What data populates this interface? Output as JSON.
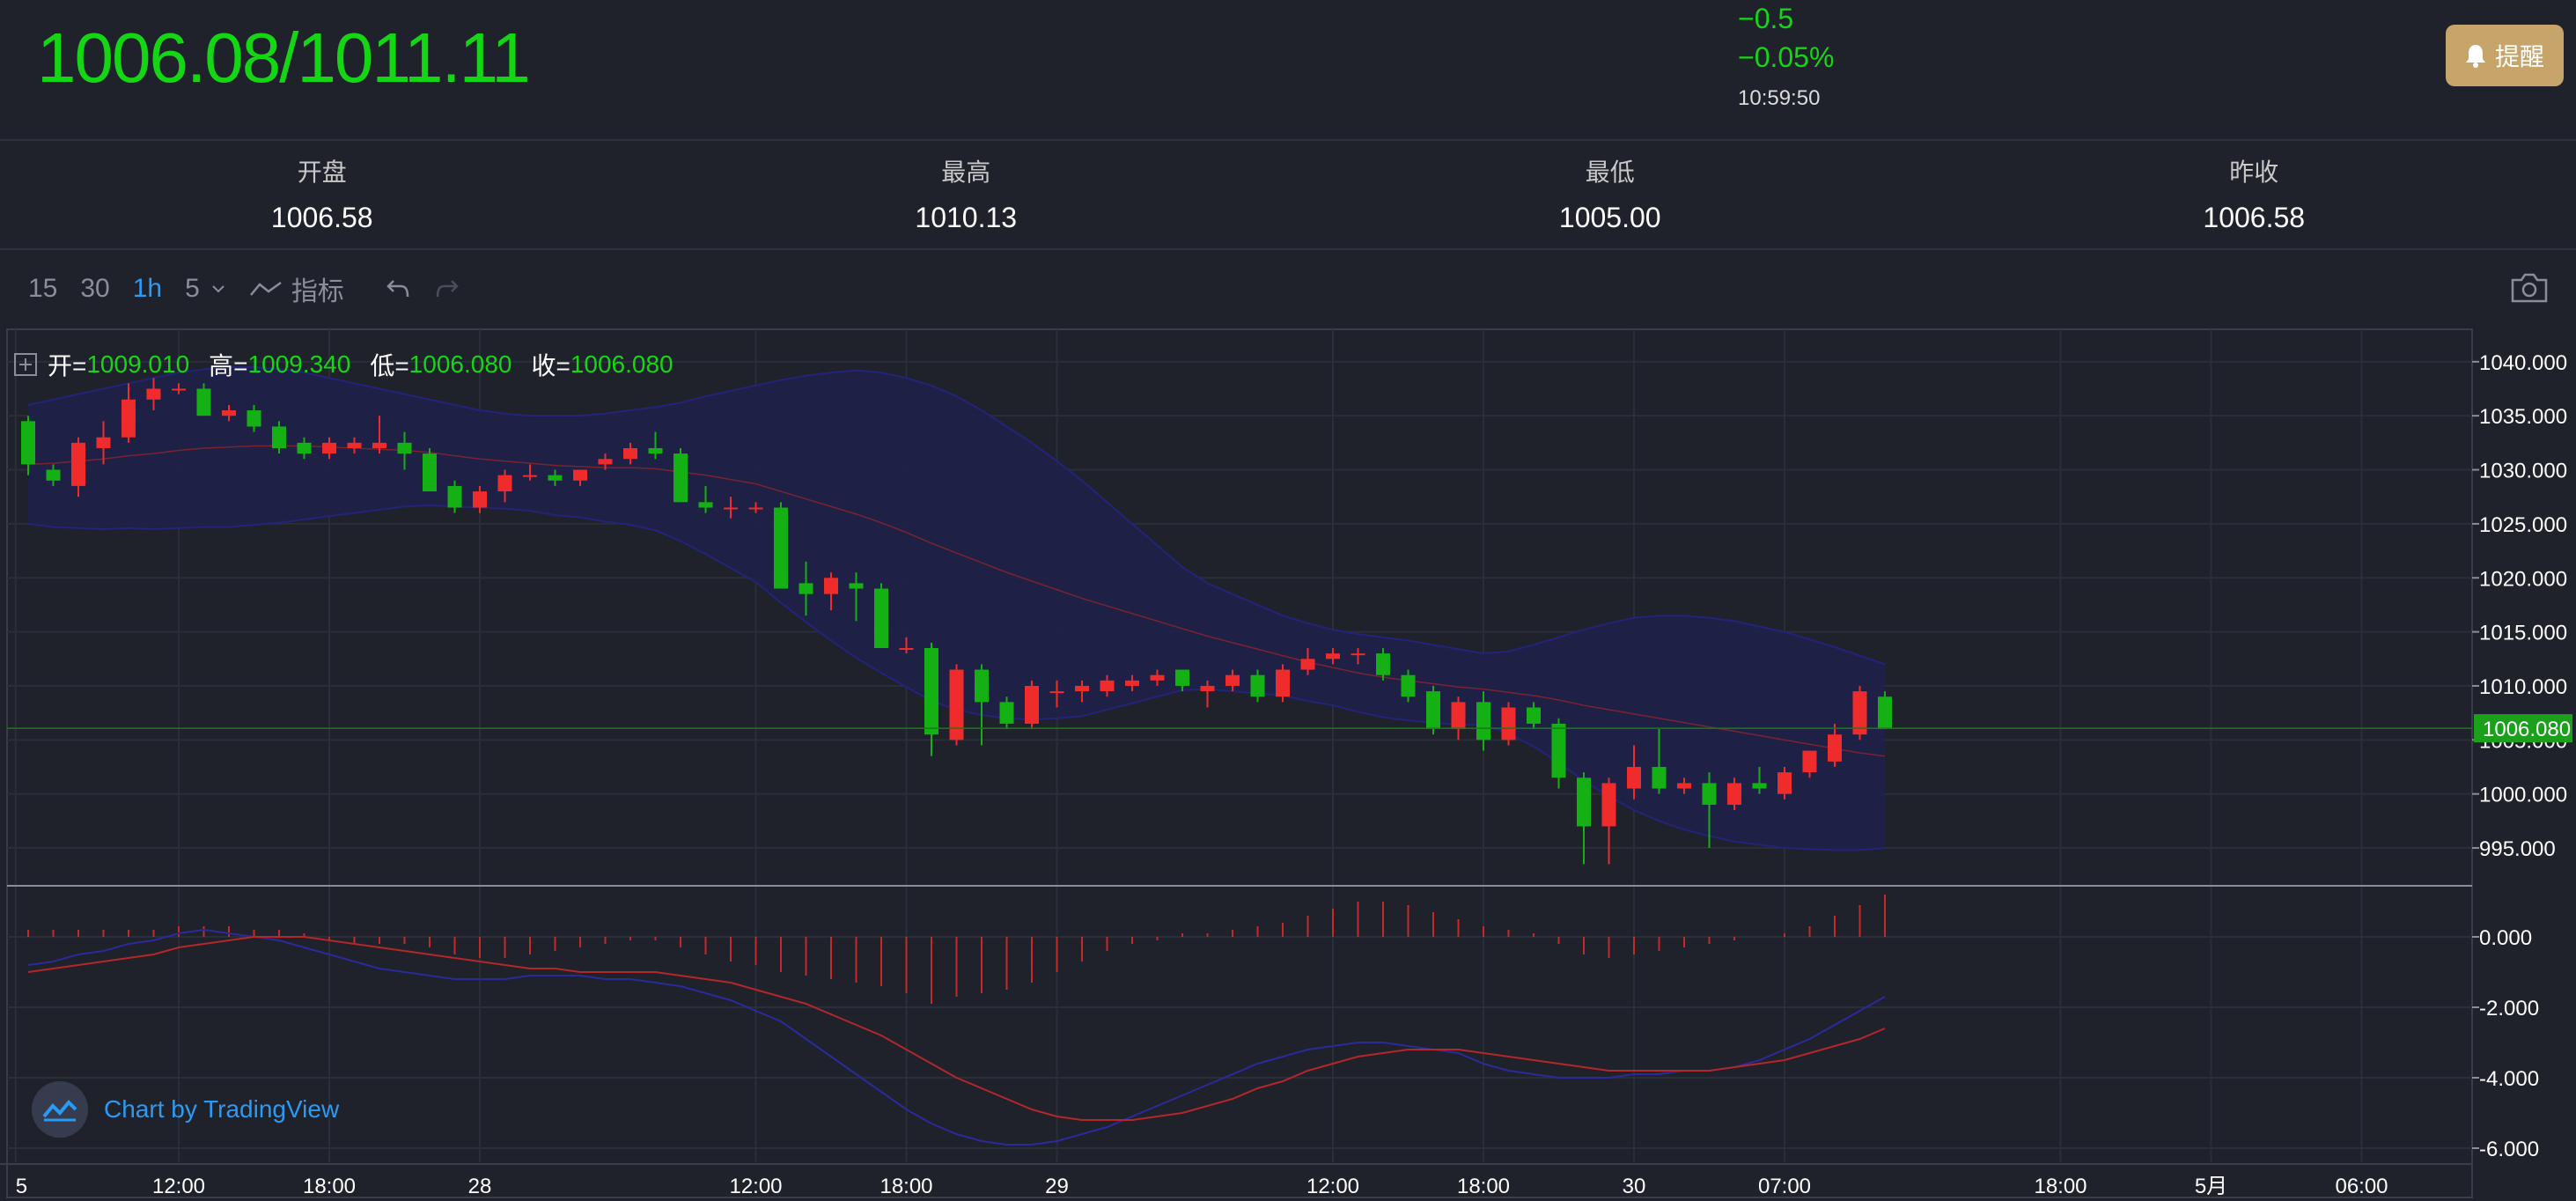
{
  "header": {
    "price": "1006.08/1011.11",
    "change_abs": "−0.5",
    "change_pct": "−0.05%",
    "time": "10:59:50",
    "alert_label": "提醒"
  },
  "stats": [
    {
      "label": "开盘",
      "value": "1006.58"
    },
    {
      "label": "最高",
      "value": "1010.13"
    },
    {
      "label": "最低",
      "value": "1005.00"
    },
    {
      "label": "昨收",
      "value": "1006.58"
    }
  ],
  "toolbar": {
    "intervals": [
      "15",
      "30",
      "1h",
      "5"
    ],
    "active_interval": "1h",
    "indicators_label": "指标"
  },
  "legend": {
    "open_label": "开=",
    "open": "1009.010",
    "high_label": "高=",
    "high": "1009.340",
    "low_label": "低=",
    "low": "1006.080",
    "close_label": "收=",
    "close": "1006.080"
  },
  "branding": "Chart by TradingView",
  "colors": {
    "up": "#ef2b2b",
    "down": "#14b014",
    "accent": "#2b9af3",
    "alert": "#c6a46a"
  },
  "chart_data": {
    "type": "candlestick",
    "price_axis": {
      "ticks": [
        "1040.000",
        "1035.000",
        "1030.000",
        "1025.000",
        "1020.000",
        "1015.000",
        "1010.000",
        "1005.000",
        "1000.000",
        "995.000"
      ],
      "last_price_label": "1006.080",
      "range": [
        991.5,
        1043
      ]
    },
    "macd_axis": {
      "ticks": [
        "0.000",
        "-2.000",
        "-4.000",
        "-6.000"
      ],
      "range": [
        -6.4,
        1.4
      ]
    },
    "time_axis": {
      "labels": [
        {
          "i": -0.5,
          "text": "5"
        },
        {
          "i": 6,
          "text": "12:00"
        },
        {
          "i": 12,
          "text": "18:00"
        },
        {
          "i": 18,
          "text": "28"
        },
        {
          "i": 29,
          "text": "12:00"
        },
        {
          "i": 35,
          "text": "18:00"
        },
        {
          "i": 41,
          "text": "29"
        },
        {
          "i": 52,
          "text": "12:00"
        },
        {
          "i": 58,
          "text": "18:00"
        },
        {
          "i": 64,
          "text": "30"
        },
        {
          "i": 70,
          "text": "07:00"
        },
        {
          "i": 81,
          "text": "18:00"
        },
        {
          "i": 87,
          "text": "5月"
        },
        {
          "i": 93,
          "text": "06:00"
        }
      ]
    },
    "candles": [
      [
        1034.5,
        1035.0,
        1029.5,
        1030.5
      ],
      [
        1030.0,
        1030.5,
        1028.5,
        1029.0
      ],
      [
        1028.5,
        1033.0,
        1027.5,
        1032.5
      ],
      [
        1032.0,
        1034.5,
        1030.5,
        1033.0
      ],
      [
        1033.0,
        1038.0,
        1032.5,
        1036.5
      ],
      [
        1036.5,
        1038.5,
        1035.5,
        1037.5
      ],
      [
        1037.5,
        1038.0,
        1037.0,
        1037.5
      ],
      [
        1037.5,
        1038.0,
        1035.0,
        1035.0
      ],
      [
        1035.0,
        1036.0,
        1034.5,
        1035.5
      ],
      [
        1035.5,
        1036.0,
        1033.5,
        1034.0
      ],
      [
        1034.0,
        1034.5,
        1031.5,
        1032.0
      ],
      [
        1032.5,
        1033.0,
        1031.0,
        1031.5
      ],
      [
        1031.5,
        1033.0,
        1031.0,
        1032.5
      ],
      [
        1032.0,
        1033.0,
        1031.5,
        1032.5
      ],
      [
        1032.0,
        1035.0,
        1031.5,
        1032.5
      ],
      [
        1032.5,
        1033.5,
        1030.0,
        1031.5
      ],
      [
        1031.5,
        1032.0,
        1028.0,
        1028.0
      ],
      [
        1028.5,
        1029.0,
        1026.0,
        1026.5
      ],
      [
        1026.5,
        1028.5,
        1026.0,
        1028.0
      ],
      [
        1028.0,
        1030.0,
        1027.0,
        1029.5
      ],
      [
        1029.5,
        1030.5,
        1029.0,
        1029.5
      ],
      [
        1029.5,
        1030.0,
        1028.5,
        1029.0
      ],
      [
        1029.0,
        1030.0,
        1028.5,
        1030.0
      ],
      [
        1030.5,
        1031.5,
        1030.0,
        1031.0
      ],
      [
        1031.0,
        1032.5,
        1030.5,
        1032.0
      ],
      [
        1032.0,
        1033.5,
        1031.0,
        1031.5
      ],
      [
        1031.5,
        1032.0,
        1027.0,
        1027.0
      ],
      [
        1027.0,
        1028.5,
        1026.0,
        1026.5
      ],
      [
        1026.5,
        1027.5,
        1025.5,
        1026.5
      ],
      [
        1026.5,
        1027.0,
        1026.0,
        1026.5
      ],
      [
        1026.5,
        1027.0,
        1019.0,
        1019.0
      ],
      [
        1019.5,
        1021.5,
        1016.5,
        1018.5
      ],
      [
        1018.5,
        1020.5,
        1017.0,
        1020.0
      ],
      [
        1019.5,
        1020.5,
        1016.0,
        1019.0
      ],
      [
        1019.0,
        1019.5,
        1013.5,
        1013.5
      ],
      [
        1013.5,
        1014.5,
        1013.0,
        1013.5
      ],
      [
        1013.5,
        1014.0,
        1003.5,
        1005.5
      ],
      [
        1005.0,
        1012.0,
        1004.5,
        1011.5
      ],
      [
        1011.5,
        1012.0,
        1004.5,
        1008.5
      ],
      [
        1008.5,
        1009.0,
        1006.0,
        1006.5
      ],
      [
        1006.5,
        1010.5,
        1006.0,
        1010.0
      ],
      [
        1009.5,
        1010.5,
        1008.0,
        1009.5
      ],
      [
        1009.5,
        1010.5,
        1008.5,
        1010.0
      ],
      [
        1009.5,
        1011.0,
        1009.0,
        1010.5
      ],
      [
        1010.0,
        1011.0,
        1009.5,
        1010.5
      ],
      [
        1010.5,
        1011.5,
        1010.0,
        1011.0
      ],
      [
        1011.5,
        1011.5,
        1009.5,
        1010.0
      ],
      [
        1009.5,
        1010.5,
        1008.0,
        1010.0
      ],
      [
        1010.0,
        1011.5,
        1009.5,
        1011.0
      ],
      [
        1011.0,
        1011.5,
        1008.5,
        1009.0
      ],
      [
        1009.0,
        1012.0,
        1008.5,
        1011.5
      ],
      [
        1011.5,
        1013.5,
        1011.0,
        1012.5
      ],
      [
        1012.5,
        1013.5,
        1012.0,
        1013.0
      ],
      [
        1013.0,
        1013.5,
        1012.0,
        1013.0
      ],
      [
        1013.0,
        1013.5,
        1010.5,
        1011.0
      ],
      [
        1011.0,
        1011.5,
        1008.5,
        1009.0
      ],
      [
        1009.5,
        1010.0,
        1005.5,
        1006.0
      ],
      [
        1006.0,
        1009.0,
        1005.0,
        1008.5
      ],
      [
        1008.5,
        1009.5,
        1004.0,
        1005.0
      ],
      [
        1005.0,
        1008.5,
        1004.5,
        1008.0
      ],
      [
        1008.0,
        1008.5,
        1006.0,
        1006.5
      ],
      [
        1006.5,
        1007.0,
        1000.5,
        1001.5
      ],
      [
        1001.5,
        1002.0,
        993.5,
        997.0
      ],
      [
        997.0,
        1001.5,
        993.5,
        1001.0
      ],
      [
        1000.5,
        1004.5,
        999.5,
        1002.5
      ],
      [
        1002.5,
        1006.0,
        1000.0,
        1000.5
      ],
      [
        1000.5,
        1001.5,
        1000.0,
        1001.0
      ],
      [
        1001.0,
        1002.0,
        995.0,
        999.0
      ],
      [
        999.0,
        1001.5,
        998.5,
        1001.0
      ],
      [
        1001.0,
        1002.5,
        1000.0,
        1000.5
      ],
      [
        1000.0,
        1002.5,
        999.5,
        1002.0
      ],
      [
        1002.0,
        1004.0,
        1001.5,
        1004.0
      ],
      [
        1003.0,
        1006.5,
        1002.5,
        1005.5
      ],
      [
        1005.5,
        1010.0,
        1005.0,
        1009.5
      ],
      [
        1009.0,
        1009.5,
        1006.0,
        1006.0
      ]
    ],
    "bollinger": {
      "middle": [
        1030.5,
        1030.6,
        1030.8,
        1031.0,
        1031.3,
        1031.5,
        1031.8,
        1032.0,
        1032.1,
        1032.2,
        1032.2,
        1032.2,
        1032.1,
        1032.0,
        1031.9,
        1031.8,
        1031.6,
        1031.3,
        1031.0,
        1030.8,
        1030.6,
        1030.4,
        1030.3,
        1030.2,
        1030.2,
        1030.1,
        1029.8,
        1029.5,
        1029.1,
        1028.7,
        1028.0,
        1027.3,
        1026.6,
        1025.9,
        1025.1,
        1024.2,
        1023.2,
        1022.3,
        1021.4,
        1020.5,
        1019.7,
        1018.9,
        1018.1,
        1017.4,
        1016.7,
        1016.0,
        1015.3,
        1014.6,
        1014.0,
        1013.4,
        1012.8,
        1012.2,
        1011.7,
        1011.2,
        1010.8,
        1010.5,
        1010.2,
        1009.9,
        1009.7,
        1009.4,
        1009.1,
        1008.7,
        1008.2,
        1007.8,
        1007.4,
        1007.0,
        1006.6,
        1006.2,
        1005.8,
        1005.4,
        1005.0,
        1004.6,
        1004.2,
        1003.8,
        1003.5
      ],
      "upper": [
        1036.0,
        1036.5,
        1037.0,
        1037.5,
        1038.0,
        1038.5,
        1039.0,
        1039.3,
        1039.5,
        1039.5,
        1039.3,
        1039.0,
        1038.5,
        1038.0,
        1037.5,
        1037.0,
        1036.5,
        1036.0,
        1035.5,
        1035.2,
        1035.0,
        1035.0,
        1035.0,
        1035.2,
        1035.5,
        1035.8,
        1036.2,
        1036.8,
        1037.3,
        1037.8,
        1038.3,
        1038.7,
        1039.0,
        1039.2,
        1039.0,
        1038.5,
        1037.8,
        1036.8,
        1035.5,
        1034.0,
        1032.5,
        1030.8,
        1029.0,
        1027.0,
        1025.0,
        1023.0,
        1021.0,
        1019.5,
        1018.5,
        1017.5,
        1016.5,
        1015.8,
        1015.2,
        1014.8,
        1014.5,
        1014.2,
        1013.8,
        1013.4,
        1013.0,
        1013.2,
        1013.8,
        1014.5,
        1015.2,
        1015.8,
        1016.3,
        1016.5,
        1016.5,
        1016.3,
        1016.0,
        1015.5,
        1015.0,
        1014.3,
        1013.6,
        1012.8,
        1012.0
      ],
      "lower": [
        1025.0,
        1024.7,
        1024.6,
        1024.5,
        1024.6,
        1024.5,
        1024.6,
        1024.7,
        1024.7,
        1024.9,
        1025.1,
        1025.4,
        1025.7,
        1026.0,
        1026.3,
        1026.6,
        1026.7,
        1026.6,
        1026.5,
        1026.4,
        1026.2,
        1025.8,
        1025.6,
        1025.2,
        1024.9,
        1024.4,
        1023.4,
        1022.2,
        1020.9,
        1019.6,
        1017.7,
        1015.9,
        1014.2,
        1012.6,
        1011.2,
        1009.9,
        1008.6,
        1007.8,
        1007.3,
        1007.0,
        1006.9,
        1007.0,
        1007.2,
        1007.8,
        1008.4,
        1009.0,
        1009.6,
        1009.7,
        1009.5,
        1009.3,
        1009.1,
        1008.6,
        1008.2,
        1007.6,
        1007.1,
        1006.8,
        1006.6,
        1006.4,
        1006.4,
        1005.6,
        1004.4,
        1002.9,
        1001.2,
        999.8,
        998.5,
        997.5,
        996.7,
        996.1,
        995.6,
        995.3,
        995.0,
        994.9,
        994.8,
        994.8,
        995.0
      ]
    },
    "ma_line": [
      1033.0,
      1032.6,
      1032.4,
      1032.3,
      1032.4,
      1032.6,
      1032.9,
      1033.2,
      1033.4,
      1033.5,
      1033.4,
      1033.2,
      1033.0,
      1032.8,
      1032.6,
      1032.4,
      1032.0,
      1031.5,
      1031.0,
      1030.6,
      1030.2,
      1029.8,
      1029.5,
      1029.3,
      1029.2,
      1029.1,
      1028.9,
      1028.6,
      1028.3,
      1028.0,
      1027.4,
      1026.7,
      1026.0,
      1025.3,
      1024.5,
      1023.6,
      1022.5,
      1021.5,
      1020.5,
      1019.5,
      1018.7,
      1017.9,
      1017.1,
      1016.4,
      1015.7,
      1015.0,
      1014.3,
      1013.6,
      1013.0,
      1012.4,
      1011.8,
      1011.3,
      1010.8,
      1010.4,
      1010.1,
      1009.9,
      1009.8,
      1009.7,
      1009.6,
      1009.4,
      1009.1,
      1008.7,
      1008.2,
      1007.8,
      1007.4,
      1007.0,
      1006.6,
      1006.3,
      1006.0,
      1005.6,
      1005.2,
      1004.8,
      1004.4,
      1004.0,
      1003.6
    ],
    "macd": {
      "histogram": [
        0.2,
        0.2,
        0.2,
        0.2,
        0.2,
        0.2,
        0.3,
        0.3,
        0.3,
        0.2,
        0.2,
        0.1,
        -0.1,
        -0.2,
        -0.2,
        -0.2,
        -0.3,
        -0.5,
        -0.6,
        -0.6,
        -0.5,
        -0.4,
        -0.3,
        -0.2,
        -0.1,
        -0.1,
        -0.3,
        -0.5,
        -0.7,
        -0.8,
        -1.0,
        -1.1,
        -1.2,
        -1.3,
        -1.4,
        -1.6,
        -1.9,
        -1.7,
        -1.6,
        -1.5,
        -1.3,
        -1.0,
        -0.7,
        -0.4,
        -0.2,
        -0.1,
        0.1,
        0.1,
        0.2,
        0.3,
        0.4,
        0.6,
        0.8,
        1.0,
        1.0,
        0.9,
        0.7,
        0.5,
        0.3,
        0.2,
        0.1,
        -0.2,
        -0.5,
        -0.6,
        -0.5,
        -0.4,
        -0.3,
        -0.2,
        -0.1,
        0.0,
        0.1,
        0.3,
        0.6,
        0.9,
        1.2
      ],
      "macd_line": [
        -0.8,
        -0.7,
        -0.5,
        -0.4,
        -0.2,
        -0.1,
        0.1,
        0.2,
        0.1,
        0.0,
        -0.1,
        -0.3,
        -0.5,
        -0.7,
        -0.9,
        -1.0,
        -1.1,
        -1.2,
        -1.2,
        -1.2,
        -1.1,
        -1.1,
        -1.1,
        -1.2,
        -1.2,
        -1.3,
        -1.4,
        -1.6,
        -1.8,
        -2.1,
        -2.4,
        -2.9,
        -3.4,
        -3.9,
        -4.4,
        -4.9,
        -5.3,
        -5.6,
        -5.8,
        -5.9,
        -5.9,
        -5.8,
        -5.6,
        -5.4,
        -5.1,
        -4.8,
        -4.5,
        -4.2,
        -3.9,
        -3.6,
        -3.4,
        -3.2,
        -3.1,
        -3.0,
        -3.0,
        -3.1,
        -3.2,
        -3.3,
        -3.6,
        -3.8,
        -3.9,
        -4.0,
        -4.0,
        -4.0,
        -3.9,
        -3.9,
        -3.8,
        -3.8,
        -3.7,
        -3.5,
        -3.2,
        -2.9,
        -2.5,
        -2.1,
        -1.7
      ],
      "signal_line": [
        -1.0,
        -0.9,
        -0.8,
        -0.7,
        -0.6,
        -0.5,
        -0.3,
        -0.2,
        -0.1,
        0.0,
        0.0,
        0.0,
        -0.1,
        -0.2,
        -0.3,
        -0.4,
        -0.5,
        -0.6,
        -0.7,
        -0.8,
        -0.9,
        -0.9,
        -1.0,
        -1.0,
        -1.0,
        -1.0,
        -1.1,
        -1.2,
        -1.3,
        -1.5,
        -1.7,
        -1.9,
        -2.2,
        -2.5,
        -2.8,
        -3.2,
        -3.6,
        -4.0,
        -4.3,
        -4.6,
        -4.9,
        -5.1,
        -5.2,
        -5.2,
        -5.2,
        -5.1,
        -5.0,
        -4.8,
        -4.6,
        -4.3,
        -4.1,
        -3.8,
        -3.6,
        -3.4,
        -3.3,
        -3.2,
        -3.2,
        -3.2,
        -3.3,
        -3.4,
        -3.5,
        -3.6,
        -3.7,
        -3.8,
        -3.8,
        -3.8,
        -3.8,
        -3.8,
        -3.7,
        -3.6,
        -3.5,
        -3.3,
        -3.1,
        -2.9,
        -2.6
      ]
    }
  }
}
